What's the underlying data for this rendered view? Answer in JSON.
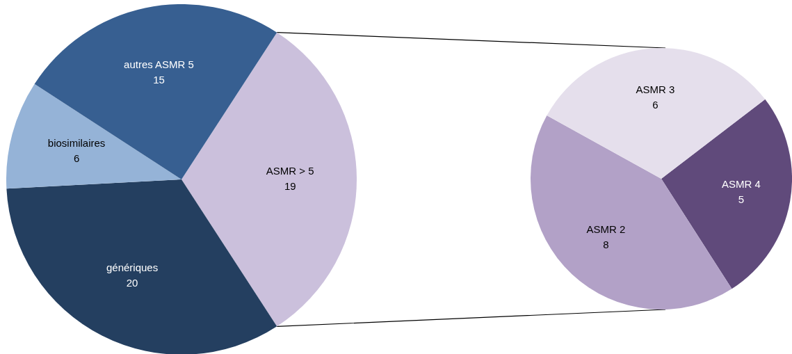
{
  "chart_data": [
    {
      "type": "pie",
      "categories": [
        "ASMR > 5",
        "génériques",
        "biosimilaires",
        "autres ASMR 5"
      ],
      "values": [
        19,
        20,
        6,
        15
      ],
      "colors": [
        "#cbc0dc",
        "#243f60",
        "#95b3d7",
        "#375f91"
      ],
      "data_labels": true,
      "legend": false
    },
    {
      "type": "pie",
      "categories": [
        "ASMR 4",
        "ASMR 2",
        "ASMR 3"
      ],
      "values": [
        5,
        8,
        6
      ],
      "colors": [
        "#604a7b",
        "#b2a1c7",
        "#e5dfec"
      ],
      "data_labels": true,
      "legend": false
    }
  ]
}
